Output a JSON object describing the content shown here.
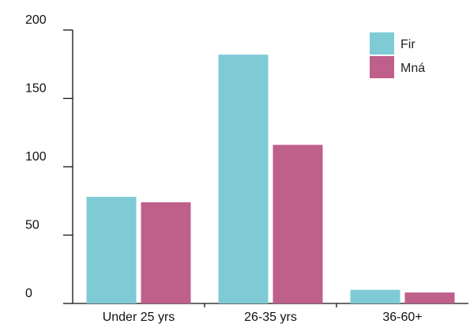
{
  "chart_data": {
    "type": "bar",
    "title": "",
    "xlabel": "",
    "ylabel": "",
    "categories": [
      "Under 25 yrs",
      "26-35 yrs",
      "36-60+"
    ],
    "series": [
      {
        "name": "Fir",
        "color": "#7ecbd6",
        "values": [
          78,
          182,
          10
        ]
      },
      {
        "name": "Mná",
        "color": "#bf5f8b",
        "values": [
          74,
          116,
          8
        ]
      }
    ],
    "ylim": [
      0,
      200
    ],
    "yticks": [
      0,
      50,
      100,
      150,
      200
    ],
    "grid": false,
    "legend_position": "top-right"
  }
}
